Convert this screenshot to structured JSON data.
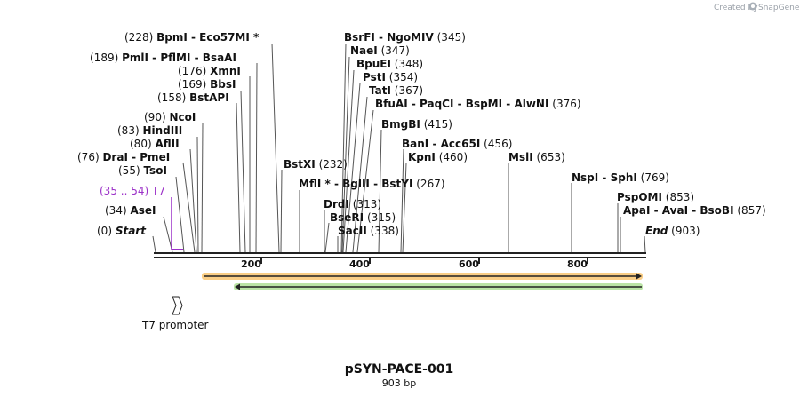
{
  "credit": {
    "text": "Created by",
    "brand": "SnapGene"
  },
  "plasmid": {
    "name": "pSYN-PACE-001",
    "length_label": "903 bp"
  },
  "ruler": {
    "ticks": [
      "200",
      "400",
      "600",
      "800"
    ]
  },
  "labels": {
    "bpmi": {
      "pos": "(228)",
      "name": "BpmI",
      "sep1": " - ",
      "name2": "Eco57MI *"
    },
    "pmli": {
      "pos": "(189)",
      "name": "PmlI",
      "sep1": " - ",
      "name2": "PflMI",
      "sep2": " - ",
      "name3": "BsaAI"
    },
    "xmni": {
      "pos": "(176)",
      "name": "XmnI"
    },
    "bbsi": {
      "pos": "(169)",
      "name": "BbsI"
    },
    "bstapi": {
      "pos": "(158)",
      "name": "BstAPI"
    },
    "ncoi": {
      "pos": "(90)",
      "name": "NcoI"
    },
    "hindiii": {
      "pos": "(83)",
      "name": "HindIII"
    },
    "aflii": {
      "pos": "(80)",
      "name": "AflII"
    },
    "drai": {
      "pos": "(76)",
      "name": "DraI",
      "sep1": " - ",
      "name2": "PmeI"
    },
    "tsoi": {
      "pos": "(55)",
      "name": "TsoI"
    },
    "t7": {
      "pos": "(35 .. 54)",
      "name": "T7"
    },
    "asei": {
      "pos": "(34)",
      "name": "AseI"
    },
    "start": {
      "pos": "(0)",
      "name": "Start"
    },
    "bsrfi": {
      "name": "BsrFI",
      "sep1": " - ",
      "name2": "NgoMIV",
      "pos": "(345)"
    },
    "naei": {
      "name": "NaeI",
      "pos": "(347)"
    },
    "bpuei": {
      "name": "BpuEI",
      "pos": "(348)"
    },
    "psti": {
      "name": "PstI",
      "pos": "(354)"
    },
    "tati": {
      "name": "TatI",
      "pos": "(367)"
    },
    "bfuai": {
      "name": "BfuAI",
      "sep1": " - ",
      "name2": "PaqCI",
      "sep2": " - ",
      "name3": "BspMI",
      "sep3": " - ",
      "name4": "AlwNI",
      "pos": "(376)"
    },
    "bmgbi": {
      "name": "BmgBI",
      "pos": "(415)"
    },
    "bani": {
      "name": "BanI",
      "sep1": " - ",
      "name2": "Acc65I",
      "pos": "(456)"
    },
    "kpni": {
      "name": "KpnI",
      "pos": "(460)"
    },
    "msli": {
      "name": "MslI",
      "pos": "(653)"
    },
    "bstxi": {
      "name": "BstXI",
      "pos": "(232)"
    },
    "mfli": {
      "name": "MflI *",
      "sep1": " - ",
      "name2": "BglII",
      "sep2": " - ",
      "name3": "BstYI",
      "pos": "(267)"
    },
    "drdi": {
      "name": "DrdI",
      "pos": "(313)"
    },
    "bseri": {
      "name": "BseRI",
      "pos": "(315)"
    },
    "sacii": {
      "name": "SacII",
      "pos": "(338)"
    },
    "nspi": {
      "name": "NspI",
      "sep1": " - ",
      "name2": "SphI",
      "pos": "(769)"
    },
    "pspomi": {
      "name": "PspOMI",
      "pos": "(853)"
    },
    "apai": {
      "name": "ApaI",
      "sep1": " - ",
      "name2": "AvaI",
      "sep2": " - ",
      "name3": "BsoBI",
      "pos": "(857)"
    },
    "end": {
      "name": "End",
      "pos": "(903)"
    }
  },
  "features": {
    "t7_promoter": {
      "label": "T7 promoter",
      "color": "#ffffff"
    },
    "orange_bar": {
      "color": "#f5a623"
    },
    "green_bar": {
      "color": "#8ed16b"
    }
  },
  "colors": {
    "primer": "#9b30c8",
    "backbone": "#222222"
  }
}
